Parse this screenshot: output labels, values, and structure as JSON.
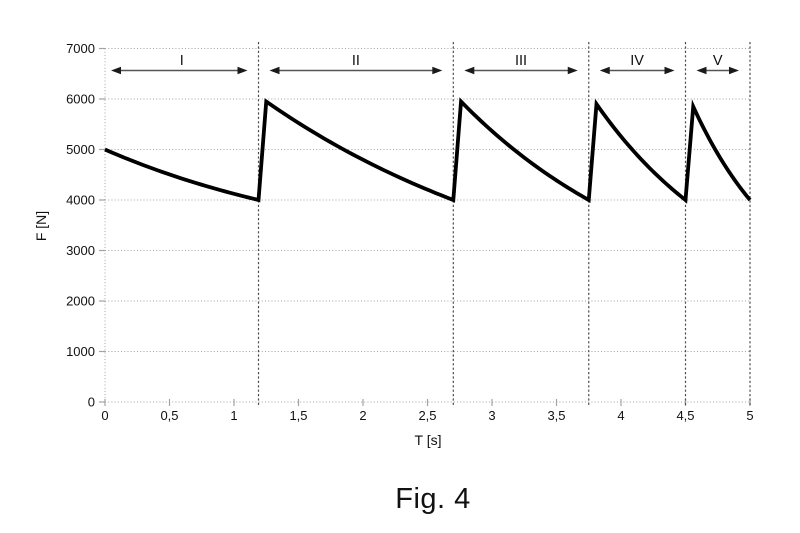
{
  "caption": {
    "text": "Fig. 4"
  },
  "chart_data": {
    "type": "line",
    "title": "",
    "xlabel": "T [s]",
    "ylabel": "F [N]",
    "xlim": [
      0,
      5
    ],
    "ylim": [
      0,
      7000
    ],
    "x_ticks": [
      0,
      0.5,
      1,
      1.5,
      2,
      2.5,
      3,
      3.5,
      4,
      4.5,
      5
    ],
    "x_tick_labels": [
      "0",
      "0,5",
      "1",
      "1,5",
      "2",
      "2,5",
      "3",
      "3,5",
      "4",
      "4,5",
      "5"
    ],
    "y_ticks": [
      0,
      1000,
      2000,
      3000,
      4000,
      5000,
      6000,
      7000
    ],
    "y_tick_labels": [
      "0",
      "1000",
      "2000",
      "3000",
      "4000",
      "5000",
      "6000",
      "7000"
    ],
    "grid": "dotted horizontal gridlines, dotted axes",
    "legend": "none",
    "boundaries": [
      1.19,
      2.7,
      3.75,
      4.5,
      5
    ],
    "regions": [
      {
        "label": "I",
        "t_start": 0,
        "t_end": 1.19
      },
      {
        "label": "II",
        "t_start": 1.19,
        "t_end": 2.7
      },
      {
        "label": "III",
        "t_start": 2.7,
        "t_end": 3.75
      },
      {
        "label": "IV",
        "t_start": 3.75,
        "t_end": 4.5
      },
      {
        "label": "V",
        "t_start": 4.5,
        "t_end": 5
      }
    ],
    "series": [
      {
        "name": "F",
        "shape": "sawtooth with exponential-like decay",
        "segments": [
          {
            "kind": "decay",
            "t0": 0,
            "f0": 5000,
            "t1": 1.19,
            "f1": 4000
          },
          {
            "kind": "rise",
            "t0": 1.19,
            "f0": 4000,
            "t1": 1.25,
            "f1": 5950
          },
          {
            "kind": "decay",
            "t0": 1.25,
            "f0": 5950,
            "t1": 2.7,
            "f1": 4000
          },
          {
            "kind": "rise",
            "t0": 2.7,
            "f0": 4000,
            "t1": 2.76,
            "f1": 5950
          },
          {
            "kind": "decay",
            "t0": 2.76,
            "f0": 5950,
            "t1": 3.75,
            "f1": 4000
          },
          {
            "kind": "rise",
            "t0": 3.75,
            "f0": 4000,
            "t1": 3.81,
            "f1": 5900
          },
          {
            "kind": "decay",
            "t0": 3.81,
            "f0": 5900,
            "t1": 4.5,
            "f1": 4000
          },
          {
            "kind": "rise",
            "t0": 4.5,
            "f0": 4000,
            "t1": 4.56,
            "f1": 5850
          },
          {
            "kind": "decay",
            "t0": 4.56,
            "f0": 5850,
            "t1": 5,
            "f1": 4000
          }
        ]
      }
    ],
    "colors": {
      "curve": "#000000",
      "grid": "#a3a3a3",
      "boundary": "#4d4d4d",
      "arrow_line": "#555555",
      "arrow_head": "#1a1a1a",
      "text": "#111111"
    }
  }
}
